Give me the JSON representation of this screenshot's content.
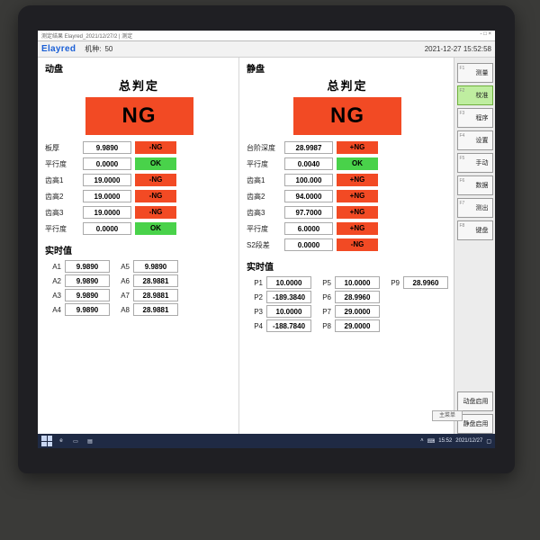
{
  "window": {
    "title": "测定结果 Elayred_2021/12/27/2 | 测定",
    "ctrl": "- □ ×"
  },
  "top": {
    "logo": "Elayred",
    "model_label": "机种:",
    "model_value": "50",
    "datetime": "2021-12-27 15:52:58"
  },
  "colors": {
    "ng_bg": "#f24a24",
    "ng_fg": "#000000",
    "ok_bg": "#49d24a",
    "ok_fg": "#000000",
    "status_ng_bg": "#f24a24",
    "status_ok_bg": "#49d24a"
  },
  "left": {
    "head": "动盘",
    "verdict_title": "总判定",
    "verdict": "NG",
    "rows": [
      {
        "label": "板厚",
        "value": "9.9890",
        "status": "-NG",
        "kind": "ng"
      },
      {
        "label": "平行度",
        "value": "0.0000",
        "status": "OK",
        "kind": "ok"
      },
      {
        "label": "齿高1",
        "value": "19.0000",
        "status": "-NG",
        "kind": "ng"
      },
      {
        "label": "齿高2",
        "value": "19.0000",
        "status": "-NG",
        "kind": "ng"
      },
      {
        "label": "齿高3",
        "value": "19.0000",
        "status": "-NG",
        "kind": "ng"
      },
      {
        "label": "平行度",
        "value": "0.0000",
        "status": "OK",
        "kind": "ok"
      }
    ],
    "rt_label": "实时值",
    "rt": [
      {
        "tag": "A1",
        "val": "9.9890"
      },
      {
        "tag": "A5",
        "val": "9.9890"
      },
      {
        "tag": "A2",
        "val": "9.9890"
      },
      {
        "tag": "A6",
        "val": "28.9881"
      },
      {
        "tag": "A3",
        "val": "9.9890"
      },
      {
        "tag": "A7",
        "val": "28.9881"
      },
      {
        "tag": "A4",
        "val": "9.9890"
      },
      {
        "tag": "A8",
        "val": "28.9881"
      }
    ]
  },
  "right": {
    "head": "静盘",
    "verdict_title": "总判定",
    "verdict": "NG",
    "rows": [
      {
        "label": "台阶深度",
        "value": "28.9987",
        "status": "+NG",
        "kind": "ng"
      },
      {
        "label": "平行度",
        "value": "0.0040",
        "status": "OK",
        "kind": "ok"
      },
      {
        "label": "齿高1",
        "value": "100.000",
        "status": "+NG",
        "kind": "ng"
      },
      {
        "label": "齿高2",
        "value": "94.0000",
        "status": "+NG",
        "kind": "ng"
      },
      {
        "label": "齿高3",
        "value": "97.7000",
        "status": "+NG",
        "kind": "ng"
      },
      {
        "label": "平行度",
        "value": "6.0000",
        "status": "+NG",
        "kind": "ng"
      },
      {
        "label": "S2段差",
        "value": "0.0000",
        "status": "-NG",
        "kind": "ng"
      }
    ],
    "rt_label": "实时值",
    "rt": [
      {
        "tag": "P1",
        "val": "10.0000"
      },
      {
        "tag": "P5",
        "val": "10.0000"
      },
      {
        "tag": "P9",
        "val": "28.9960"
      },
      {
        "tag": "P2",
        "val": "-189.3840"
      },
      {
        "tag": "P6",
        "val": "28.9960"
      },
      null,
      {
        "tag": "P3",
        "val": "10.0000"
      },
      {
        "tag": "P7",
        "val": "29.0000"
      },
      null,
      {
        "tag": "P4",
        "val": "-188.7840"
      },
      {
        "tag": "P8",
        "val": "29.0000"
      },
      null
    ],
    "rt_cols": 3
  },
  "side": [
    {
      "fn": "F1",
      "label": "测量",
      "hl": false
    },
    {
      "fn": "F2",
      "label": "校准",
      "hl": true
    },
    {
      "fn": "F3",
      "label": "程序",
      "hl": false
    },
    {
      "fn": "F4",
      "label": "设置",
      "hl": false
    },
    {
      "fn": "F5",
      "label": "手动",
      "hl": false
    },
    {
      "fn": "F6",
      "label": "数据",
      "hl": false
    },
    {
      "fn": "F7",
      "label": "测出",
      "hl": false
    },
    {
      "fn": "F8",
      "label": "键盘",
      "hl": false
    },
    {
      "fn": "",
      "label": "动盘启用",
      "hl": false
    },
    {
      "fn": "",
      "label": "静盘启用",
      "hl": false
    }
  ],
  "footer_btn": "主菜单",
  "taskbar": {
    "time": "15:52",
    "date": "2021/12/27"
  }
}
